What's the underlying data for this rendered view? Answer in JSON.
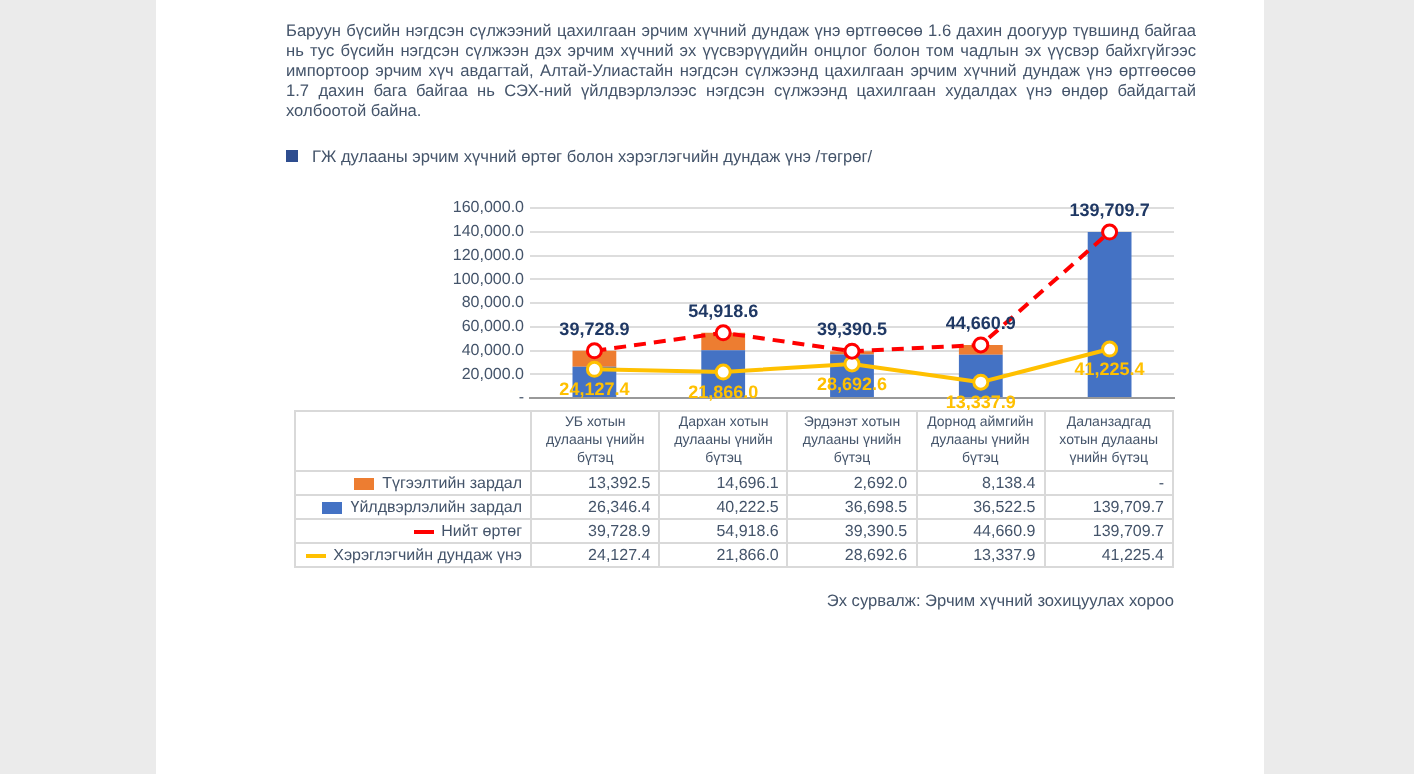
{
  "chart_data": {
    "type": "bar",
    "subtitle": "Баруун бүсийн нэгдсэн сүлжээний цахилгаан эрчим хүчний дундаж үнэ өртгөөсөө 1.6 дахин доогуур түвшинд байгаа нь тус бүсийн нэгдсэн сүлжээн дэх эрчим хүчний эх үүсвэрүүдийн онцлог болон том чадлын эх үүсвэр байхгүйгээс импортоор эрчим хүч авдагтай, Алтай-Улиастайн нэгдсэн сүлжээнд цахилгаан эрчим хүчний дундаж үнэ өртгөөсөө 1.7 дахин бага байгаа нь СЭХ-ний үйлдвэрлэлээс нэгдсэн сүлжээнд цахилгаан худалдах үнэ өндөр байдагтай холбоотой байна.",
    "title": "ГЖ дулааны эрчим хүчний өртөг болон хэрэглэгчийн дундаж үнэ /төгрөг/",
    "categories": [
      "УБ хотын дулааны үнийн бүтэц",
      "Дархан хотын дулааны үнийн бүтэц",
      "Эрдэнэт хотын дулааны үнийн бүтэц",
      "Дорнод аймгийн дулааны үнийн бүтэц",
      "Даланзадгад хотын дулааны үнийн бүтэц"
    ],
    "stacked": true,
    "series": [
      {
        "name": "Үйлдвэрлэлийн зардал",
        "color": "#4472c4",
        "values": [
          26346.4,
          40222.5,
          36698.5,
          36522.5,
          139709.7
        ],
        "value_labels": [
          "26,346.4",
          "40,222.5",
          "36,698.5",
          "36,522.5",
          "139,709.7"
        ]
      },
      {
        "name": "Түгээлтийн зардал",
        "color": "#ed7d31",
        "values": [
          13392.5,
          14696.1,
          2692.0,
          8138.4,
          null
        ],
        "value_labels": [
          "13,392.5",
          "14,696.1",
          "2,692.0",
          "8,138.4",
          "-"
        ]
      },
      {
        "name": "Нийт өртөг",
        "type": "line",
        "line_style": "dashed",
        "color": "#ff0000",
        "values": [
          39728.9,
          54918.6,
          39390.5,
          44660.9,
          139709.7
        ],
        "value_labels": [
          "39,728.9",
          "54,918.6",
          "39,390.5",
          "44,660.9",
          "139,709.7"
        ]
      },
      {
        "name": "Хэрэглэгчийн дундаж үнэ",
        "type": "line",
        "line_style": "solid",
        "color": "#ffc000",
        "values": [
          24127.4,
          21866.0,
          28692.6,
          13337.9,
          41225.4
        ],
        "value_labels": [
          "24,127.4",
          "21,866.0",
          "28,692.6",
          "13,337.9",
          "41,225.4"
        ]
      }
    ],
    "ylim": [
      0,
      160000
    ],
    "yticks": [
      {
        "value": 0,
        "label": "-"
      },
      {
        "value": 20000,
        "label": "20,000.0"
      },
      {
        "value": 40000,
        "label": "40,000.0"
      },
      {
        "value": 60000,
        "label": "60,000.0"
      },
      {
        "value": 80000,
        "label": "80,000.0"
      },
      {
        "value": 100000,
        "label": "100,000.0"
      },
      {
        "value": 120000,
        "label": "120,000.0"
      },
      {
        "value": 140000,
        "label": "140,000.0"
      },
      {
        "value": 160000,
        "label": "160,000.0"
      }
    ],
    "grid": "y",
    "marker": "circle",
    "legend": "bottom",
    "annotations": [
      "Эх сурвалж: Эрчим хүчний зохицуулах хороо"
    ]
  }
}
